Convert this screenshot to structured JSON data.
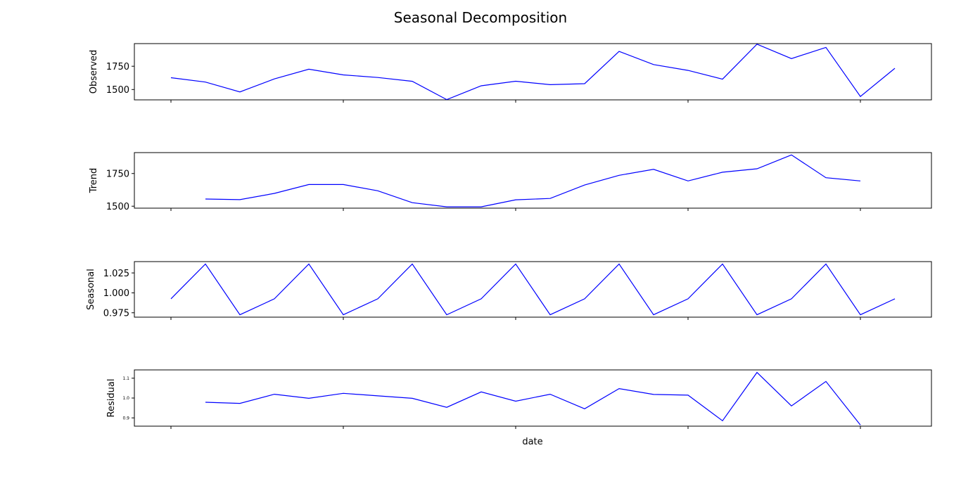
{
  "title": "Seasonal Decomposition",
  "xlabel": "date",
  "chart_data": [
    {
      "type": "line",
      "ylabel": "Observed",
      "y_ticks": [
        "1500",
        "1750"
      ],
      "y_tick_values": [
        1500,
        1750
      ],
      "ylim": [
        1389,
        1993
      ],
      "x": [
        0,
        1,
        2,
        3,
        4,
        5,
        6,
        7,
        8,
        9,
        10,
        11,
        12,
        13,
        14,
        15,
        16,
        17,
        18,
        19,
        20,
        21
      ],
      "values": [
        1627,
        1580,
        1474,
        1614,
        1718,
        1657,
        1629,
        1588,
        1392,
        1540,
        1589,
        1552,
        1563,
        1909,
        1768,
        1705,
        1611,
        1987,
        1832,
        1952,
        1425,
        1728
      ],
      "color": "#0000ff"
    },
    {
      "type": "line",
      "ylabel": "Trend",
      "y_ticks": [
        "1500",
        "1750"
      ],
      "y_tick_values": [
        1500,
        1750
      ],
      "ylim": [
        1485,
        1910
      ],
      "x": [
        1,
        2,
        3,
        4,
        5,
        6,
        7,
        8,
        9,
        10,
        11,
        12,
        13,
        14,
        15,
        16,
        17,
        18,
        19,
        20
      ],
      "values": [
        1555,
        1550,
        1598,
        1666,
        1666,
        1618,
        1527,
        1495,
        1495,
        1549,
        1559,
        1662,
        1736,
        1782,
        1693,
        1760,
        1786,
        1892,
        1718,
        1693
      ],
      "color": "#0000ff"
    },
    {
      "type": "line",
      "ylabel": "Seasonal",
      "y_ticks": [
        "0.975",
        "1.000",
        "1.025"
      ],
      "y_tick_values": [
        0.975,
        1.0,
        1.025
      ],
      "ylim": [
        0.9695,
        1.0392
      ],
      "x": [
        0,
        1,
        2,
        3,
        4,
        5,
        6,
        7,
        8,
        9,
        10,
        11,
        12,
        13,
        14,
        15,
        16,
        17,
        18,
        19,
        20,
        21
      ],
      "values": [
        0.9925,
        1.0362,
        0.9725,
        0.9925,
        1.0362,
        0.9725,
        0.9925,
        1.0362,
        0.9725,
        0.9925,
        1.0362,
        0.9725,
        0.9925,
        1.0362,
        0.9725,
        0.9925,
        1.0362,
        0.9725,
        0.9925,
        1.0362,
        0.9725,
        0.9925
      ],
      "color": "#0000ff"
    },
    {
      "type": "line",
      "ylabel": "Residual",
      "y_ticks": [
        "0.9",
        "1.0",
        "1.1"
      ],
      "y_tick_values": [
        0.9,
        1.0,
        1.1
      ],
      "ylim": [
        0.8582,
        1.1419
      ],
      "x": [
        1,
        2,
        3,
        4,
        5,
        6,
        7,
        8,
        9,
        10,
        11,
        12,
        13,
        14,
        15,
        16,
        17,
        18,
        19,
        20
      ],
      "values": [
        0.9786,
        0.9731,
        1.0192,
        0.9985,
        1.0237,
        1.0109,
        0.9985,
        0.9531,
        1.031,
        0.9841,
        1.0192,
        0.9458,
        1.0474,
        1.0183,
        1.0146,
        0.8856,
        1.1292,
        0.9604,
        1.0838,
        0.8637
      ],
      "color": "#0000ff"
    }
  ]
}
